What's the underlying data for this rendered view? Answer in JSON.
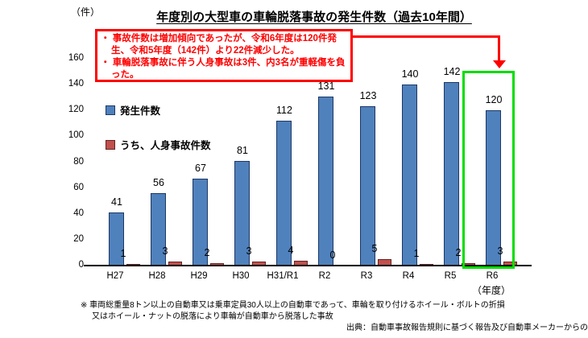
{
  "page": {
    "unit_label": "（件）",
    "title": "年度別の大型車の車輪脱落事故の発生件数（過去10年間）"
  },
  "annotation": {
    "bullets": [
      "事故件数は増加傾向であったが、令和6年度は120件発生、令和5年度（142件）より22件減少した。",
      "車輪脱落事故に伴う人身事故は3件、内3名が重軽傷を負った。"
    ],
    "border_color": "#ff0000",
    "text_color": "#ff0000"
  },
  "legend": {
    "items": [
      {
        "label": "発生件数",
        "fill": "#4f81bd",
        "border": "#1f3864"
      },
      {
        "label": "うち、人身事故件数",
        "fill": "#c0504d",
        "border": "#632423"
      }
    ]
  },
  "chart_data": {
    "type": "bar",
    "title": "年度別の大型車の車輪脱落事故の発生件数（過去10年間）",
    "unit": "件",
    "categories": [
      "H27",
      "H28",
      "H29",
      "H30",
      "H31/R1",
      "R2",
      "R3",
      "R4",
      "R5",
      "R6"
    ],
    "series": [
      {
        "name": "発生件数",
        "color": "#4f81bd",
        "border_color": "#1f3864",
        "values": [
          41,
          56,
          67,
          81,
          112,
          131,
          123,
          140,
          142,
          120
        ]
      },
      {
        "name": "うち、人身事故件数",
        "color": "#c0504d",
        "border_color": "#632423",
        "values": [
          1,
          3,
          2,
          3,
          4,
          0,
          5,
          1,
          2,
          3
        ]
      }
    ],
    "ylim": [
      0,
      160
    ],
    "ytick_interval": 20,
    "grid": false,
    "legend_position": "inside-left",
    "highlight": {
      "category": "R6",
      "box_color": "#00dd00"
    },
    "xaxis_suffix": "（年度）"
  },
  "footnote": {
    "line1": "※ 車両総重量8トン以上の自動車又は乗車定員30人以上の自動車であって、車輪を取り付けるホイール・ボルトの折損",
    "line2": "又はホイール・ナットの脱落により車輪が自動車から脱落した事故",
    "source": "出典：自動車事故報告規則に基づく報告及び自動車メーカーからの報告"
  }
}
